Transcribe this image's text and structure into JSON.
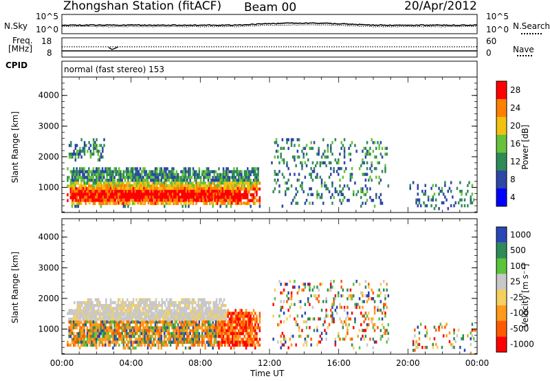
{
  "header": {
    "station": "Zhongshan Station (fitACF)",
    "beam": "Beam 00",
    "date": "20/Apr/2012"
  },
  "summary_panels": {
    "nsky_label": "N.Sky",
    "nsky_ticks": [
      "10^5",
      "10^0"
    ],
    "nsearch_label": "N.Search",
    "nsearch_ticks": [
      "10^5",
      "10^0"
    ],
    "freq_label": "Freq.",
    "freq_unit": "[MHz]",
    "freq_ticks": [
      "18",
      "8"
    ],
    "nave_label": "Nave",
    "nave_ticks": [
      "60",
      "0"
    ],
    "cpid_label": "CPID",
    "cpid_text": "normal (fast stereo) 153"
  },
  "chart_data": [
    {
      "type": "heatmap",
      "panel": "power",
      "ylabel": "Slant Range [km]",
      "ylim": [
        180,
        4600
      ],
      "yticks": [
        "1000",
        "2000",
        "3000",
        "4000"
      ],
      "xlim_hours": [
        0,
        24
      ],
      "colorbar_label": "Power [dB]",
      "colorbar_ticks": [
        "28",
        "24",
        "20",
        "16",
        "12",
        "8",
        "4"
      ],
      "colorbar_colors": [
        "#0000ff",
        "#2e46a6",
        "#2e8b57",
        "#66c23a",
        "#f2c010",
        "#ff8000",
        "#ff0000"
      ],
      "regions": [
        {
          "t0": 0.2,
          "t1": 11.5,
          "r0": 400,
          "r1": 1750,
          "level": "medium"
        },
        {
          "t0": 0.5,
          "t1": 10.5,
          "r0": 500,
          "r1": 1200,
          "level": "high"
        },
        {
          "t0": 0.3,
          "t1": 2.5,
          "r0": 1900,
          "r1": 2700,
          "level": "low"
        },
        {
          "t0": 12.0,
          "t1": 19.0,
          "r0": 400,
          "r1": 2700,
          "level": "sparse"
        },
        {
          "t0": 20.0,
          "t1": 24.0,
          "r0": 250,
          "r1": 1300,
          "level": "sparse"
        }
      ]
    },
    {
      "type": "heatmap",
      "panel": "velocity",
      "ylabel": "Slant Range [km]",
      "ylim": [
        180,
        4600
      ],
      "yticks": [
        "1000",
        "2000",
        "3000",
        "4000"
      ],
      "xlabel": "Time UT",
      "xticks": [
        "00:00",
        "04:00",
        "08:00",
        "12:00",
        "16:00",
        "20:00",
        "00:00"
      ],
      "xlim_hours": [
        0,
        24
      ],
      "colorbar_label": "Velocity [m s⁻¹]",
      "colorbar_ticks": [
        "1000",
        "500",
        "100",
        "25",
        "-25",
        "-100",
        "-500",
        "-1000"
      ],
      "colorbar_colors": [
        "#ff0000",
        "#ff5a00",
        "#ff9a1a",
        "#f4d060",
        "#c8c8c8",
        "#5bc43a",
        "#2e8b57",
        "#2846b4"
      ],
      "regions": [
        {
          "t0": 0.2,
          "t1": 11.5,
          "r0": 400,
          "r1": 1750,
          "level": "mixed"
        },
        {
          "t0": 0.5,
          "t1": 9.5,
          "r0": 1300,
          "r1": 2100,
          "level": "grey"
        },
        {
          "t0": 12.0,
          "t1": 19.0,
          "r0": 400,
          "r1": 2700,
          "level": "sparse"
        },
        {
          "t0": 20.0,
          "t1": 24.0,
          "r0": 250,
          "r1": 1300,
          "level": "sparse"
        }
      ]
    }
  ]
}
